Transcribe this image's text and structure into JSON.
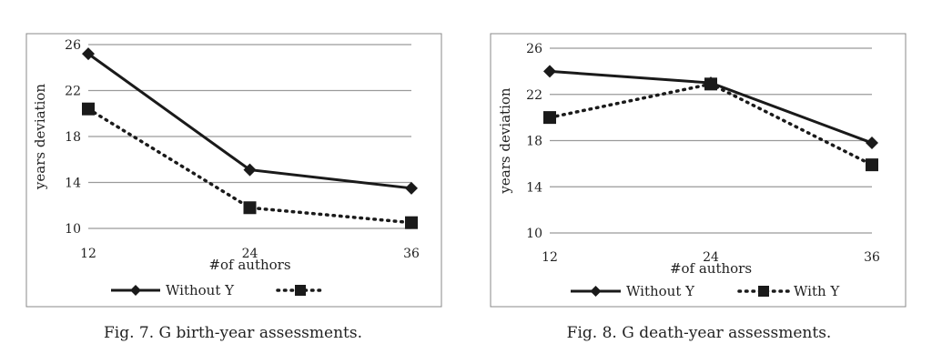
{
  "chart_data": [
    {
      "type": "line",
      "categories": [
        "12",
        "24",
        "36"
      ],
      "series": [
        {
          "name": "Without Y",
          "values": [
            25.2,
            15.1,
            13.5
          ],
          "style": "solid",
          "marker": "diamond"
        },
        {
          "name": "",
          "values": [
            20.4,
            11.8,
            10.5
          ],
          "style": "dotted",
          "marker": "square"
        }
      ],
      "yticks": [
        "10",
        "14",
        "18",
        "22",
        "26"
      ],
      "ylim": [
        10,
        26
      ],
      "xlabel": "#of authors",
      "ylabel": "years deviation",
      "grid": true,
      "legend": "bottom",
      "caption": "Fig. 7.  G birth-year assessments."
    },
    {
      "type": "line",
      "categories": [
        "12",
        "24",
        "36"
      ],
      "series": [
        {
          "name": "Without Y",
          "values": [
            24.0,
            23.0,
            17.8
          ],
          "style": "solid",
          "marker": "diamond"
        },
        {
          "name": "With Y",
          "values": [
            20.0,
            22.9,
            15.9
          ],
          "style": "dotted",
          "marker": "square"
        }
      ],
      "yticks": [
        "10",
        "14",
        "18",
        "22",
        "26"
      ],
      "ylim": [
        10,
        26
      ],
      "xlabel": "#of authors",
      "ylabel": "years deviation",
      "grid": true,
      "legend": "bottom",
      "caption": "Fig. 8.  G death-year assessments."
    }
  ]
}
